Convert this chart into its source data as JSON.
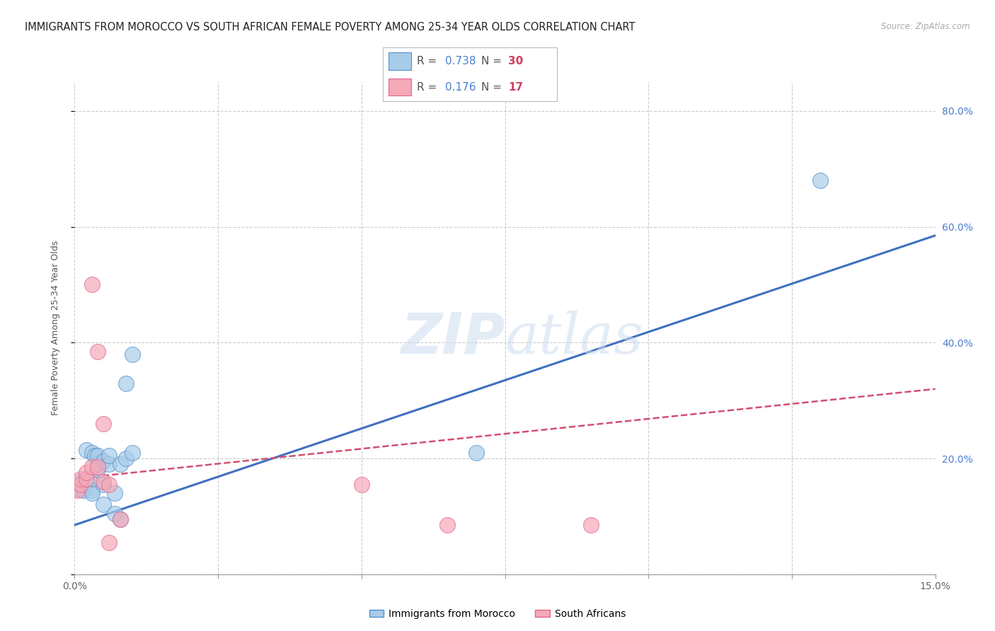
{
  "title": "IMMIGRANTS FROM MOROCCO VS SOUTH AFRICAN FEMALE POVERTY AMONG 25-34 YEAR OLDS CORRELATION CHART",
  "source": "Source: ZipAtlas.com",
  "ylabel": "Female Poverty Among 25-34 Year Olds",
  "xlim": [
    0.0,
    0.15
  ],
  "ylim": [
    0.0,
    0.85
  ],
  "blue_R": "0.738",
  "blue_N": "30",
  "pink_R": "0.176",
  "pink_N": "17",
  "blue_fill": "#a8cce8",
  "pink_fill": "#f4a8b8",
  "blue_edge": "#5090d0",
  "pink_edge": "#e06888",
  "blue_line": "#4070c0",
  "pink_line": "#d05070",
  "right_tick_color": "#4a7fd0",
  "watermark_color": "#ccddf0",
  "blue_dots_x": [
    0.0005,
    0.001,
    0.001,
    0.0015,
    0.002,
    0.002,
    0.002,
    0.003,
    0.003,
    0.003,
    0.003,
    0.0035,
    0.004,
    0.004,
    0.004,
    0.005,
    0.005,
    0.005,
    0.006,
    0.006,
    0.007,
    0.007,
    0.008,
    0.008,
    0.009,
    0.009,
    0.01,
    0.01,
    0.07,
    0.13
  ],
  "blue_dots_y": [
    0.148,
    0.155,
    0.16,
    0.145,
    0.155,
    0.165,
    0.215,
    0.145,
    0.14,
    0.165,
    0.21,
    0.205,
    0.18,
    0.19,
    0.205,
    0.12,
    0.155,
    0.195,
    0.19,
    0.205,
    0.105,
    0.14,
    0.095,
    0.19,
    0.2,
    0.33,
    0.21,
    0.38,
    0.21,
    0.68
  ],
  "pink_dots_x": [
    0.0005,
    0.001,
    0.001,
    0.002,
    0.002,
    0.003,
    0.003,
    0.004,
    0.004,
    0.005,
    0.005,
    0.006,
    0.006,
    0.008,
    0.05,
    0.065,
    0.09
  ],
  "pink_dots_y": [
    0.145,
    0.155,
    0.165,
    0.165,
    0.175,
    0.185,
    0.5,
    0.185,
    0.385,
    0.26,
    0.16,
    0.155,
    0.055,
    0.095,
    0.155,
    0.085,
    0.085
  ],
  "blue_line_x": [
    0.0,
    0.15
  ],
  "blue_line_y": [
    0.085,
    0.585
  ],
  "pink_line_x": [
    0.0,
    0.15
  ],
  "pink_line_y": [
    0.165,
    0.32
  ],
  "xtick_positions": [
    0.0,
    0.025,
    0.05,
    0.075,
    0.1,
    0.125,
    0.15
  ],
  "xtick_labels": [
    "0.0%",
    "",
    "",
    "",
    "",
    "",
    "15.0%"
  ],
  "ytick_positions": [
    0.0,
    0.2,
    0.4,
    0.6,
    0.8
  ],
  "ytick_labels_right": [
    "",
    "20.0%",
    "40.0%",
    "60.0%",
    "80.0%"
  ]
}
